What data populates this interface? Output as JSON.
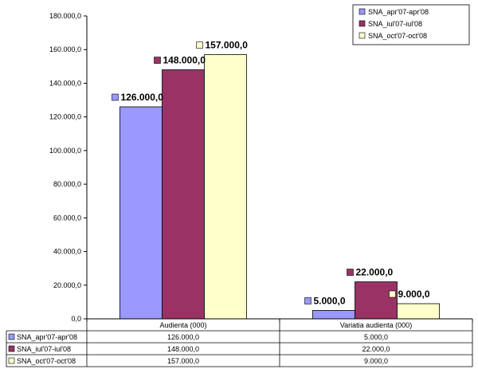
{
  "chart_data": {
    "type": "bar",
    "categories": [
      "Audienta (000)",
      "Variatia audienta (000)"
    ],
    "series": [
      {
        "name": "SNA_apr'07-apr'08",
        "values": [
          126000,
          5000
        ],
        "labels": [
          "126.000,0",
          "5.000,0"
        ],
        "color": "#9999ff"
      },
      {
        "name": "SNA_iul'07-iul'08",
        "values": [
          148000,
          22000
        ],
        "labels": [
          "148.000,0",
          "22.000,0"
        ],
        "color": "#993366"
      },
      {
        "name": "SNA_oct'07-oct'08",
        "values": [
          157000,
          9000
        ],
        "labels": [
          "157.000,0",
          "9.000,0"
        ],
        "color": "#ffffcc"
      }
    ],
    "y_ticks": [
      "0,0",
      "20.000,0",
      "40.000,0",
      "60.000,0",
      "80.000,0",
      "100.000,0",
      "120.000,0",
      "140.000,0",
      "160.000,0",
      "180.000,0"
    ],
    "ylim": [
      0,
      180000
    ],
    "grid": false,
    "legend": "top-right",
    "data_table": true
  }
}
